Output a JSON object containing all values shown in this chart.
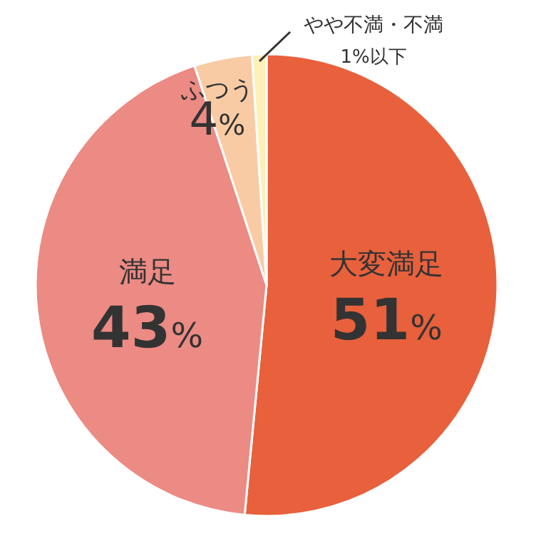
{
  "chart_data": {
    "type": "pie",
    "categories": [
      "大変満足",
      "満足",
      "ふつう",
      "やや不満・不満"
    ],
    "values": [
      51,
      43,
      4,
      1
    ],
    "value_labels": [
      "51%",
      "43%",
      "4%",
      "1%以下"
    ],
    "colors": [
      "#e8603c",
      "#ec8a84",
      "#f9cba5",
      "#fdf0b8"
    ]
  }
}
